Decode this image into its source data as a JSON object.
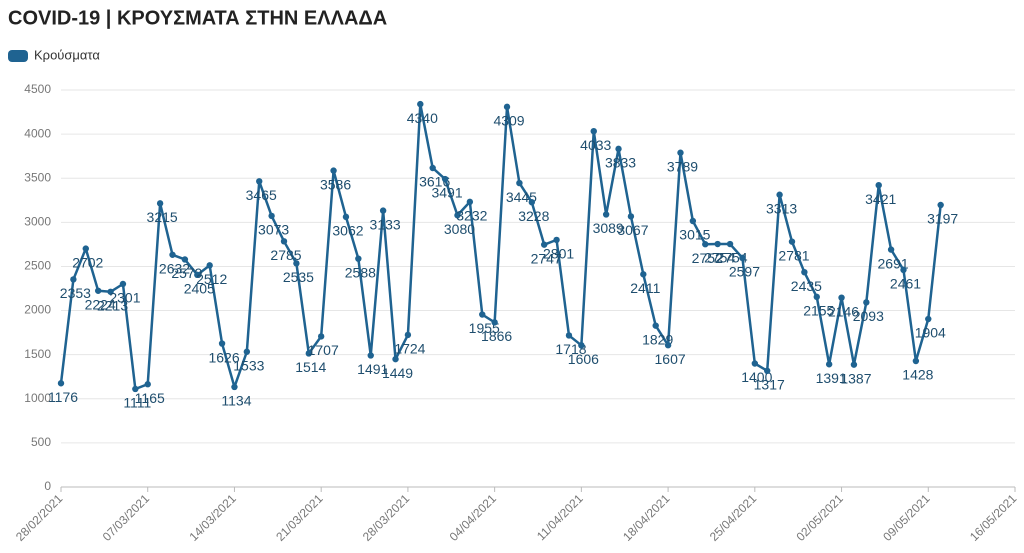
{
  "chart_data": {
    "type": "line",
    "title": "COVID-19 | ΚΡΟΥΣΜΑΤΑ ΣΤΗΝ ΕΛΛΑΔΑ",
    "x": [
      "28/02/2021",
      "01/03/2021",
      "02/03/2021",
      "03/03/2021",
      "04/03/2021",
      "05/03/2021",
      "06/03/2021",
      "07/03/2021",
      "08/03/2021",
      "09/03/2021",
      "10/03/2021",
      "11/03/2021",
      "12/03/2021",
      "13/03/2021",
      "14/03/2021",
      "15/03/2021",
      "16/03/2021",
      "17/03/2021",
      "18/03/2021",
      "19/03/2021",
      "20/03/2021",
      "21/03/2021",
      "22/03/2021",
      "23/03/2021",
      "24/03/2021",
      "25/03/2021",
      "26/03/2021",
      "27/03/2021",
      "28/03/2021",
      "29/03/2021",
      "30/03/2021",
      "31/03/2021",
      "01/04/2021",
      "02/04/2021",
      "03/04/2021",
      "04/04/2021",
      "05/04/2021",
      "06/04/2021",
      "07/04/2021",
      "08/04/2021",
      "09/04/2021",
      "10/04/2021",
      "11/04/2021",
      "12/04/2021",
      "13/04/2021",
      "14/04/2021",
      "15/04/2021",
      "16/04/2021",
      "17/04/2021",
      "18/04/2021",
      "19/04/2021",
      "20/04/2021",
      "21/04/2021",
      "22/04/2021",
      "23/04/2021",
      "24/04/2021",
      "25/04/2021",
      "26/04/2021",
      "27/04/2021",
      "28/04/2021",
      "29/04/2021",
      "30/04/2021",
      "01/05/2021",
      "02/05/2021",
      "03/05/2021",
      "04/05/2021",
      "05/05/2021",
      "06/05/2021",
      "07/05/2021",
      "08/05/2021",
      "09/05/2021",
      "10/05/2021"
    ],
    "series": [
      {
        "name": "Κρούσματα",
        "color": "#1f6391",
        "values": [
          1176,
          2353,
          2702,
          2224,
          2213,
          2301,
          1111,
          1165,
          3215,
          2632,
          2579,
          2405,
          2512,
          1626,
          1134,
          1533,
          3465,
          3073,
          2785,
          2535,
          1514,
          1707,
          3586,
          3062,
          2588,
          1491,
          3133,
          1449,
          1724,
          4340,
          3616,
          3491,
          3080,
          3232,
          1955,
          1866,
          4309,
          3445,
          3228,
          2747,
          2801,
          1718,
          1606,
          4033,
          3089,
          3833,
          3067,
          2411,
          1829,
          1607,
          3789,
          3015,
          2752,
          2754,
          2754,
          2597,
          1400,
          1317,
          3313,
          2781,
          2435,
          2155,
          1391,
          2146,
          1387,
          2093,
          3421,
          2691,
          2461,
          1428,
          1904,
          3197
        ]
      }
    ],
    "xlim": [
      "28/02/2021",
      "16/05/2021"
    ],
    "xticks": [
      "28/02/2021",
      "07/03/2021",
      "14/03/2021",
      "21/03/2021",
      "28/03/2021",
      "04/04/2021",
      "11/04/2021",
      "18/04/2021",
      "25/04/2021",
      "02/05/2021",
      "09/05/2021",
      "16/05/2021"
    ],
    "ylim": [
      0,
      4500
    ],
    "yticks": [
      0,
      500,
      1000,
      1500,
      2000,
      2500,
      3000,
      3500,
      4000,
      4500
    ],
    "grid": true,
    "legend": "top-left"
  }
}
